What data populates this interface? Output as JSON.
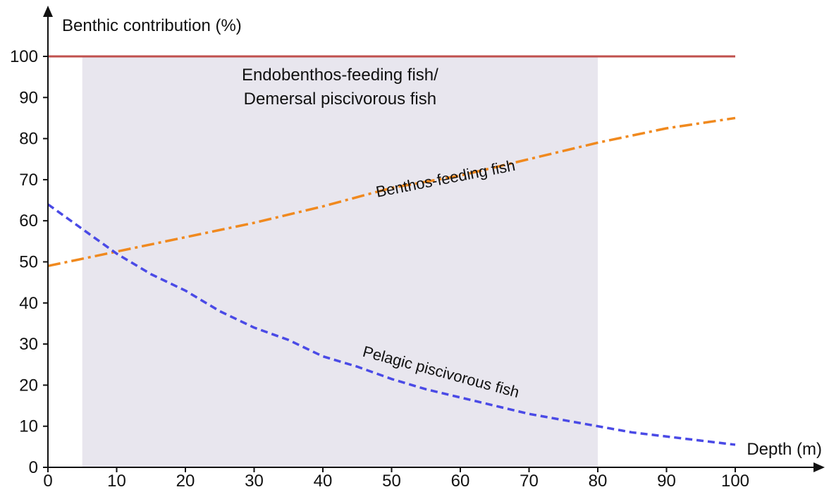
{
  "chart_data": {
    "type": "line",
    "ylabel": "Benthic contribution (%)",
    "xlabel": "Depth (m)",
    "xlim": [
      0,
      100
    ],
    "ylim": [
      0,
      100
    ],
    "xticks": [
      0,
      10,
      20,
      30,
      40,
      50,
      60,
      70,
      80,
      90,
      100
    ],
    "yticks": [
      0,
      10,
      20,
      30,
      40,
      50,
      60,
      70,
      80,
      90,
      100
    ],
    "grid": false,
    "shaded_region": {
      "x": [
        5,
        80
      ],
      "y": [
        0,
        100
      ],
      "color": "#e8e6ee",
      "label_lines": [
        "Endobenthos-feeding fish/",
        "Demersal piscivorous fish"
      ]
    },
    "series": [
      {
        "name": "Endobenthos-feeding fish/Demersal piscivorous fish",
        "color": "#c0504d",
        "style": "solid",
        "x": [
          0,
          100
        ],
        "y": [
          100,
          100
        ]
      },
      {
        "name": "Benthos-feeding fish",
        "color": "#f0891e",
        "style": "dashdot",
        "x": [
          0,
          10,
          20,
          30,
          40,
          50,
          60,
          70,
          80,
          90,
          100
        ],
        "y": [
          49,
          52.5,
          56,
          59.5,
          63.5,
          68,
          71,
          75,
          79,
          82.5,
          85
        ]
      },
      {
        "name": "Pelagic piscivorous fish",
        "color": "#4a4ae6",
        "style": "dashed",
        "x": [
          0,
          5,
          10,
          15,
          20,
          25,
          30,
          35,
          40,
          45,
          50,
          55,
          60,
          65,
          70,
          75,
          80,
          85,
          90,
          95,
          100
        ],
        "y": [
          64,
          58,
          52,
          47,
          43,
          38,
          34,
          31,
          27,
          24.5,
          21.5,
          19,
          17,
          15,
          13,
          11.5,
          10,
          8.5,
          7.5,
          6.5,
          5.5
        ]
      }
    ],
    "series_labels": [
      {
        "text": "Benthos-feeding fish",
        "x": 58,
        "y": 69,
        "rotate": -11
      },
      {
        "text": "Pelagic piscivorous fish",
        "x": 57,
        "y": 22,
        "rotate": 15
      }
    ]
  }
}
